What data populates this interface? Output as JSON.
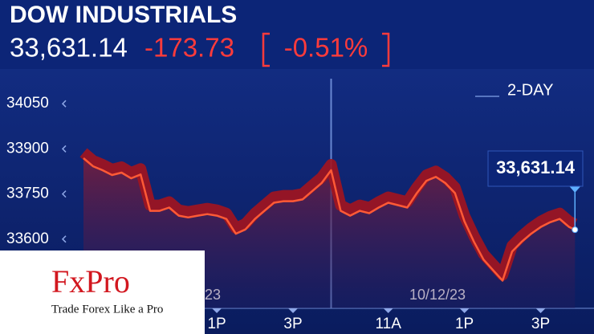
{
  "chart_data": {
    "type": "line",
    "title": "DOW INDUSTRIALS",
    "last": "33,631.14",
    "change": "-173.73",
    "change_pct": "-0.51%",
    "range_label": "2-DAY",
    "last_label": "33,631.14",
    "dates": [
      "23",
      "10/12/23"
    ],
    "series": [
      {
        "name": "DOW INDUSTRIALS",
        "color": "#ff5a36",
        "x": [
          0,
          0.25,
          0.5,
          0.75,
          1,
          1.25,
          1.5,
          1.75,
          2,
          2.25,
          2.5,
          2.75,
          3,
          3.25,
          3.5,
          3.75,
          4,
          4.25,
          4.5,
          4.75,
          5,
          5.25,
          5.5,
          5.75,
          6,
          6.25,
          6.5,
          6.75,
          7,
          7.25,
          7.5,
          7.75,
          8,
          8.25,
          8.5,
          8.75,
          9,
          9.25,
          9.5,
          9.75,
          10,
          10.25,
          10.5,
          10.75,
          11,
          11.25,
          11.5,
          11.75,
          12,
          12.25,
          12.5,
          12.75,
          12.9
        ],
        "values": [
          33869,
          33842,
          33829,
          33813,
          33821,
          33802,
          33815,
          33694,
          33694,
          33705,
          33678,
          33672,
          33678,
          33683,
          33678,
          33667,
          33618,
          33632,
          33667,
          33694,
          33721,
          33726,
          33726,
          33732,
          33759,
          33786,
          33829,
          33694,
          33678,
          33694,
          33686,
          33705,
          33721,
          33713,
          33705,
          33753,
          33794,
          33807,
          33786,
          33753,
          33659,
          33591,
          33532,
          33497,
          33462,
          33559,
          33591,
          33618,
          33640,
          33656,
          33667,
          33640,
          33631.14
        ]
      }
    ],
    "xlim": [
      -0.4,
      13.4
    ],
    "xticks": [
      {
        "value": 3.5,
        "label": "1P"
      },
      {
        "value": 5.5,
        "label": "3P"
      },
      {
        "value": 8,
        "label": "11A"
      },
      {
        "value": 10,
        "label": "1P"
      },
      {
        "value": 12,
        "label": "3P"
      }
    ],
    "ylim": [
      33370,
      34160
    ],
    "yticks": [
      33600,
      33750,
      33900,
      34050
    ],
    "divider_x": 6.5,
    "logo": {
      "brand": "FxPro",
      "tagline": "Trade Forex Like a Pro"
    }
  }
}
